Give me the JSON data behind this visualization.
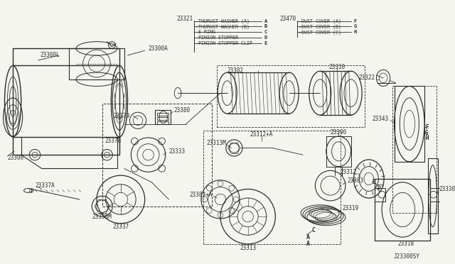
{
  "background_color": "#f5f5f0",
  "line_color": "#2a2a2a",
  "fig_width": 6.4,
  "fig_height": 3.72,
  "dpi": 100,
  "legend_left": {
    "ref_num": "23321",
    "items": [
      {
        "label": "THURUST WASHER (A)",
        "letter": "A"
      },
      {
        "label": "THURUST WASHER (B)",
        "letter": "B"
      },
      {
        "label": "E RING",
        "letter": "C"
      },
      {
        "label": "PINION STOPPER",
        "letter": "D"
      },
      {
        "label": "PINION STOPPER CLIP",
        "letter": "E"
      }
    ]
  },
  "legend_right": {
    "ref_num": "23470",
    "items": [
      {
        "label": "DUST COVER (A)",
        "letter": "F"
      },
      {
        "label": "DUST COVER (B)",
        "letter": "G"
      },
      {
        "label": "DUST COVER (C)",
        "letter": "H"
      }
    ]
  },
  "footer": "J23300SY"
}
